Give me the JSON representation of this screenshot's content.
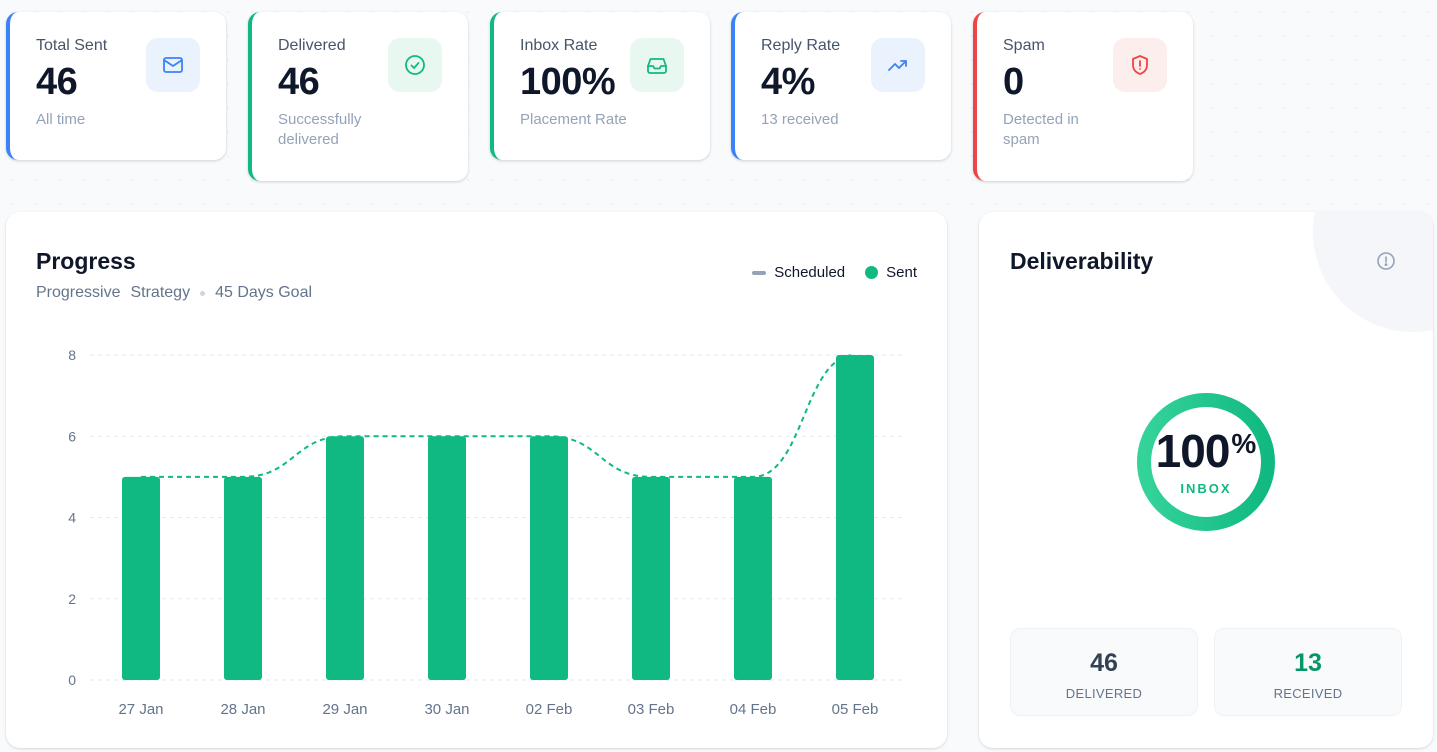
{
  "stats": [
    {
      "label": "Total Sent",
      "value": "46",
      "sub": "All time",
      "accent": "#3b82f6",
      "icon": "mail-icon",
      "icon_bg": "#eaf2fe",
      "icon_color": "#3b82f6"
    },
    {
      "label": "Delivered",
      "value": "46",
      "sub": "Successfully delivered",
      "accent": "#10b981",
      "icon": "check-circle-icon",
      "icon_bg": "#e8f8f1",
      "icon_color": "#10b981"
    },
    {
      "label": "Inbox Rate",
      "value": "100%",
      "sub": "Placement Rate",
      "accent": "#10b981",
      "icon": "inbox-icon",
      "icon_bg": "#e8f8f1",
      "icon_color": "#10b981"
    },
    {
      "label": "Reply Rate",
      "value": "4%",
      "sub": "13 received",
      "accent": "#3b82f6",
      "icon": "trending-up-icon",
      "icon_bg": "#eaf2fe",
      "icon_color": "#3b82f6"
    },
    {
      "label": "Spam",
      "value": "0",
      "sub": "Detected in spam",
      "accent": "#ef4444",
      "icon": "shield-alert-icon",
      "icon_bg": "#fdeeee",
      "icon_color": "#ef4444"
    }
  ],
  "progress": {
    "title": "Progress",
    "subtitle_part1": "Progressive",
    "subtitle_part2": "Strategy",
    "subtitle_part3": "45 Days Goal",
    "legend": {
      "scheduled": "Scheduled",
      "sent": "Sent"
    }
  },
  "chart_data": {
    "type": "bar",
    "categories": [
      "27 Jan",
      "28 Jan",
      "29 Jan",
      "30 Jan",
      "02 Feb",
      "03 Feb",
      "04 Feb",
      "05 Feb"
    ],
    "series": [
      {
        "name": "Sent",
        "type": "bar",
        "values": [
          5,
          5,
          6,
          6,
          6,
          5,
          5,
          8
        ],
        "color": "#10b981"
      },
      {
        "name": "Scheduled",
        "type": "line-dashed",
        "values": [
          5,
          5,
          6,
          6,
          6,
          5,
          5,
          8
        ],
        "color": "#10b981"
      }
    ],
    "yticks": [
      0,
      2,
      4,
      6,
      8
    ],
    "ylim": [
      0,
      8
    ],
    "grid": true,
    "legend_position": "top-right"
  },
  "deliverability": {
    "title": "Deliverability",
    "percent_number": "100",
    "percent_sign": "%",
    "percent_value": 100,
    "ring_label": "INBOX",
    "delivered_value": "46",
    "delivered_label": "DELIVERED",
    "received_value": "13",
    "received_label": "RECEIVED",
    "colors": {
      "ring": "#10b981",
      "delivered": "#334155",
      "received": "#059669"
    }
  }
}
